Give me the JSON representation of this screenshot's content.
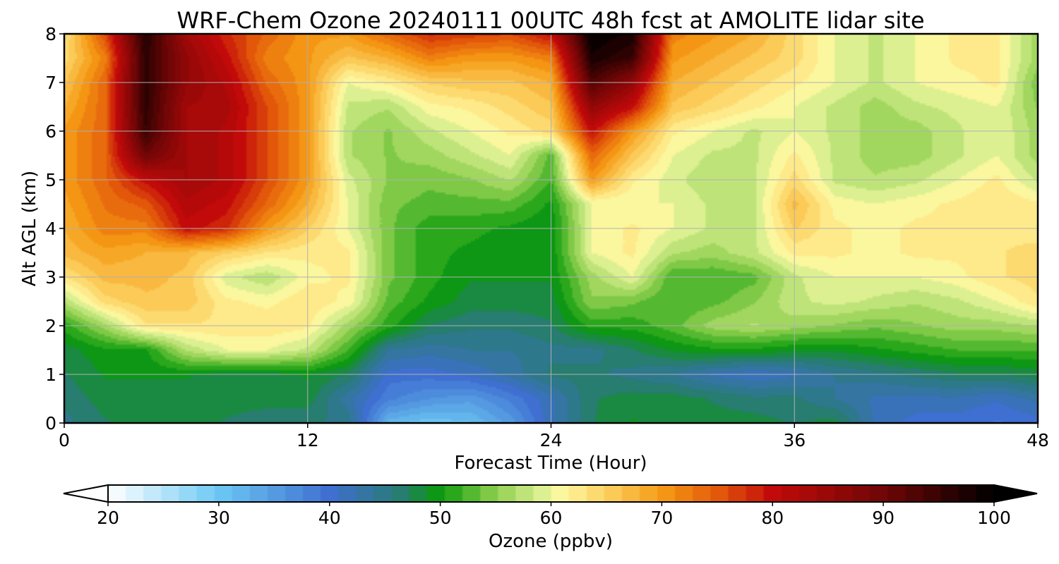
{
  "chart_data": {
    "type": "heatmap",
    "title": "WRF-Chem Ozone  20240111 00UTC 48h fcst at AMOLITE lidar site",
    "xlabel": "Forecast Time (Hour)",
    "ylabel": "Alt AGL (km)",
    "xlim": [
      0,
      48
    ],
    "ylim": [
      0,
      8
    ],
    "x_ticks": [
      0,
      12,
      24,
      36,
      48
    ],
    "y_ticks": [
      0,
      1,
      2,
      3,
      4,
      5,
      6,
      7,
      8
    ],
    "grid": true,
    "x": [
      0,
      2,
      4,
      6,
      8,
      10,
      12,
      14,
      16,
      18,
      20,
      22,
      24,
      26,
      28,
      30,
      32,
      34,
      36,
      38,
      40,
      42,
      44,
      46,
      48
    ],
    "y": [
      0,
      0.5,
      1,
      1.5,
      2,
      2.5,
      3,
      3.5,
      4,
      4.5,
      5,
      5.5,
      6,
      6.5,
      7,
      7.5,
      8
    ],
    "z": [
      [
        45,
        47,
        48,
        48,
        47,
        46,
        46,
        45,
        32,
        30,
        31,
        35,
        42,
        47,
        49,
        48,
        48,
        48,
        47,
        48,
        42,
        40,
        40,
        39,
        40
      ],
      [
        46,
        48,
        48,
        48,
        48,
        48,
        48,
        43,
        38,
        36,
        35,
        38,
        42,
        47,
        48,
        48,
        47,
        46,
        46,
        44,
        42,
        42,
        42,
        41,
        43
      ],
      [
        47,
        49,
        49,
        49,
        48,
        48,
        49,
        47,
        40,
        40,
        41,
        43,
        46,
        46,
        45,
        44,
        42,
        41,
        42,
        44,
        45,
        46,
        47,
        47,
        48
      ],
      [
        48,
        50,
        50,
        57,
        60,
        60,
        58,
        52,
        44,
        43,
        44,
        44,
        45,
        45,
        47,
        49,
        50,
        50,
        49,
        49,
        50,
        51,
        52,
        52,
        52
      ],
      [
        51,
        56,
        63,
        63,
        63,
        63,
        62,
        56,
        51,
        47,
        46,
        46,
        47,
        51,
        51,
        53,
        56,
        57,
        56,
        55,
        54,
        55,
        56,
        56,
        57
      ],
      [
        57,
        64,
        66,
        66,
        62,
        61,
        63,
        61,
        53,
        50,
        48,
        48,
        48,
        55,
        54,
        52,
        53,
        55,
        58,
        59,
        58,
        57,
        58,
        60,
        63
      ],
      [
        63,
        67,
        67,
        66,
        59,
        57,
        61,
        62,
        54,
        51,
        49,
        49,
        49,
        56,
        60,
        52,
        52,
        53,
        58,
        60,
        60,
        60,
        61,
        63,
        64
      ],
      [
        67,
        69,
        68,
        67,
        65,
        63,
        62,
        62,
        54,
        51,
        50,
        49,
        49,
        60,
        62,
        57,
        56,
        58,
        62,
        62,
        61,
        62,
        62,
        63,
        64
      ],
      [
        68,
        72,
        72,
        80,
        78,
        70,
        65,
        60,
        54,
        51,
        51,
        50,
        49,
        60,
        62,
        60,
        58,
        58,
        65,
        62,
        61,
        62,
        62,
        63,
        62
      ],
      [
        69,
        73,
        75,
        82,
        80,
        74,
        68,
        60,
        54,
        53,
        53,
        53,
        50,
        60,
        60,
        60,
        58,
        58,
        67,
        61,
        60,
        61,
        62,
        63,
        62
      ],
      [
        70,
        74,
        80,
        84,
        82,
        76,
        70,
        59,
        55,
        54,
        55,
        57,
        52,
        70,
        62,
        59,
        57,
        58,
        64,
        58,
        57,
        58,
        60,
        62,
        58
      ],
      [
        70,
        74,
        90,
        84,
        82,
        76,
        70,
        57,
        55,
        56,
        58,
        60,
        53,
        74,
        66,
        60,
        58,
        58,
        62,
        58,
        56,
        56,
        58,
        60,
        56
      ],
      [
        70,
        74,
        95,
        84,
        82,
        76,
        70,
        57,
        55,
        58,
        60,
        62,
        64,
        80,
        70,
        62,
        60,
        58,
        60,
        58,
        56,
        56,
        58,
        60,
        56
      ],
      [
        68,
        74,
        96,
        84,
        83,
        76,
        70,
        58,
        57,
        61,
        62,
        64,
        66,
        86,
        80,
        66,
        64,
        62,
        60,
        58,
        56,
        58,
        59,
        60,
        55
      ],
      [
        66,
        74,
        96,
        86,
        82,
        74,
        70,
        60,
        62,
        65,
        66,
        66,
        68,
        93,
        86,
        68,
        66,
        64,
        62,
        60,
        58,
        60,
        61,
        62,
        54
      ],
      [
        64,
        72,
        96,
        86,
        80,
        72,
        70,
        66,
        68,
        72,
        70,
        70,
        72,
        98,
        95,
        70,
        68,
        66,
        64,
        60,
        58,
        60,
        62,
        62,
        56
      ],
      [
        63,
        76,
        97,
        84,
        78,
        74,
        70,
        70,
        74,
        78,
        77,
        76,
        80,
        100,
        98,
        72,
        70,
        68,
        64,
        60,
        58,
        60,
        62,
        62,
        56
      ]
    ],
    "colorbar": {
      "label": "Ozone  (ppbv)",
      "min": 20,
      "max": 100,
      "ticks": [
        20,
        30,
        40,
        50,
        60,
        70,
        80,
        90,
        100
      ],
      "extend": "both",
      "color_stops": [
        {
          "value": 20,
          "color": "#ffffff"
        },
        {
          "value": 30,
          "color": "#6cc8f4"
        },
        {
          "value": 40,
          "color": "#3f6fd0"
        },
        {
          "value": 46,
          "color": "#2a7a7a"
        },
        {
          "value": 50,
          "color": "#0a9a0a"
        },
        {
          "value": 55,
          "color": "#8fcf4f"
        },
        {
          "value": 59,
          "color": "#d8ef90"
        },
        {
          "value": 61,
          "color": "#fff8a0"
        },
        {
          "value": 65,
          "color": "#fcd060"
        },
        {
          "value": 70,
          "color": "#f59a14"
        },
        {
          "value": 75,
          "color": "#e35a0a"
        },
        {
          "value": 80,
          "color": "#c20a0a"
        },
        {
          "value": 90,
          "color": "#700606"
        },
        {
          "value": 100,
          "color": "#000000"
        }
      ]
    }
  }
}
